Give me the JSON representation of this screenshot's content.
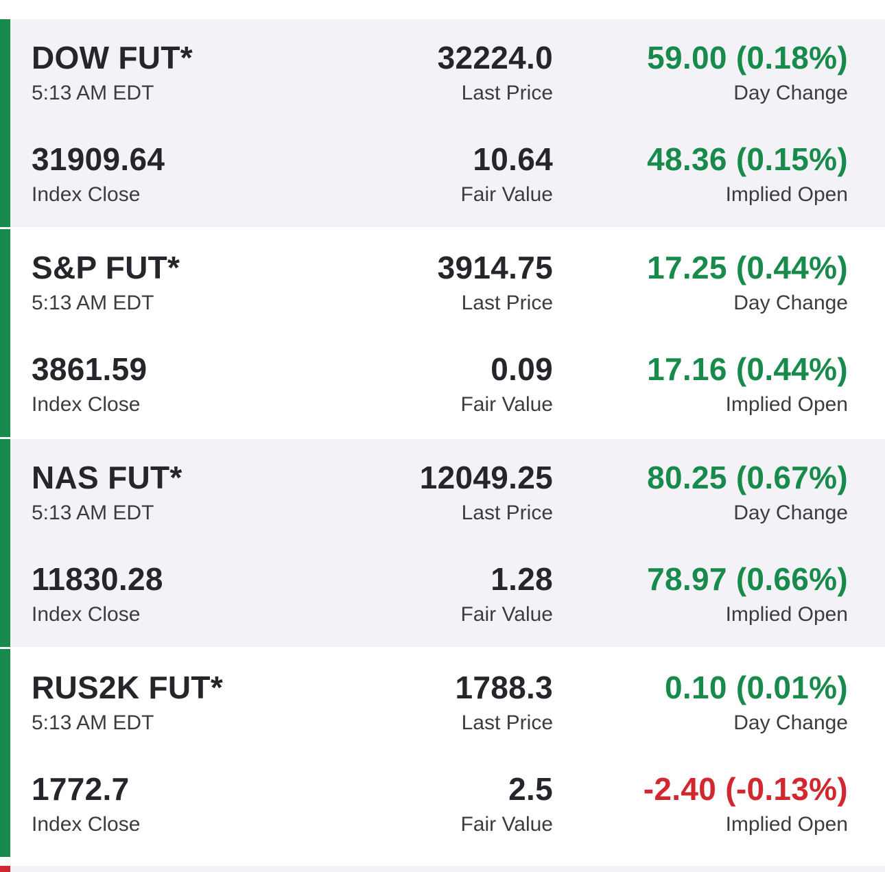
{
  "colors": {
    "up": "#178a4c",
    "down": "#d0282e",
    "text": "#24262b",
    "subtext": "#3a3c42",
    "shaded_bg": "#f3f3f7"
  },
  "futures": [
    {
      "name": "DOW FUT*",
      "time": "5:13 AM EDT",
      "last_price": "32224.0",
      "last_price_label": "Last Price",
      "day_change": "59.00 (0.18%)",
      "day_change_label": "Day Change",
      "index_close": "31909.64",
      "index_close_label": "Index Close",
      "fair_value": "10.64",
      "fair_value_label": "Fair Value",
      "implied_open": "48.36 (0.15%)",
      "implied_open_label": "Implied Open",
      "trend": "up"
    },
    {
      "name": "S&P FUT*",
      "time": "5:13 AM EDT",
      "last_price": "3914.75",
      "last_price_label": "Last Price",
      "day_change": "17.25 (0.44%)",
      "day_change_label": "Day Change",
      "index_close": "3861.59",
      "index_close_label": "Index Close",
      "fair_value": "0.09",
      "fair_value_label": "Fair Value",
      "implied_open": "17.16 (0.44%)",
      "implied_open_label": "Implied Open",
      "trend": "up"
    },
    {
      "name": "NAS FUT*",
      "time": "5:13 AM EDT",
      "last_price": "12049.25",
      "last_price_label": "Last Price",
      "day_change": "80.25 (0.67%)",
      "day_change_label": "Day Change",
      "index_close": "11830.28",
      "index_close_label": "Index Close",
      "fair_value": "1.28",
      "fair_value_label": "Fair Value",
      "implied_open": "78.97 (0.66%)",
      "implied_open_label": "Implied Open",
      "trend": "up"
    },
    {
      "name": "RUS2K FUT*",
      "time": "5:13 AM EDT",
      "last_price": "1788.3",
      "last_price_label": "Last Price",
      "day_change": "0.10 (0.01%)",
      "day_change_label": "Day Change",
      "index_close": "1772.7",
      "index_close_label": "Index Close",
      "fair_value": "2.5",
      "fair_value_label": "Fair Value",
      "implied_open": "-2.40 (-0.13%)",
      "implied_open_label": "Implied Open",
      "trend": "up",
      "implied_open_trend": "down"
    }
  ],
  "next_item_trend": "down"
}
